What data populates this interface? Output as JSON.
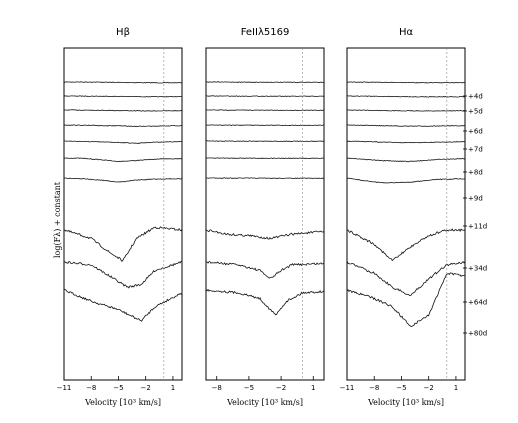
{
  "chart_data": {
    "type": "line",
    "ylabel": "log(Fλ) + constant",
    "epochs": [
      "4d",
      "5d",
      "6d",
      "7d",
      "8d",
      "9d",
      "11d",
      "34d",
      "64d",
      "80d"
    ],
    "panels": [
      {
        "title": "Hβ",
        "xlabel": "Velocity [10³ km/s]",
        "xlim": [
          -11,
          2
        ],
        "xticks": [
          "−11",
          "−8",
          "−5",
          "−2",
          "1"
        ],
        "dashed_x": 0,
        "spectra": [
          {
            "epoch": "4d",
            "x": [
              -11,
              -8,
              -5,
              -2,
              0,
              2
            ],
            "y": [
              0,
              0,
              0.03,
              0.05,
              0.06,
              0.05
            ]
          },
          {
            "epoch": "5d",
            "x": [
              -11,
              -8,
              -5,
              -2,
              0,
              2
            ],
            "y": [
              0,
              0.01,
              0.03,
              0.05,
              0.05,
              0.04
            ]
          },
          {
            "epoch": "6d",
            "x": [
              -11,
              -8,
              -5,
              -2,
              0,
              2
            ],
            "y": [
              0,
              0.01,
              0.04,
              0.07,
              0.06,
              0.05
            ]
          },
          {
            "epoch": "7d",
            "x": [
              -11,
              -8,
              -5,
              -3,
              -1,
              2
            ],
            "y": [
              0,
              0.03,
              0.06,
              0.1,
              0.07,
              0.05
            ]
          },
          {
            "epoch": "8d",
            "x": [
              -11,
              -8,
              -5,
              -3,
              -1,
              2
            ],
            "y": [
              0,
              0.05,
              0.1,
              0.16,
              0.08,
              0.05
            ]
          },
          {
            "epoch": "9d",
            "x": [
              -11,
              -9,
              -7,
              -5,
              -3,
              -1,
              2
            ],
            "y": [
              0,
              0.02,
              0.12,
              0.25,
              0.18,
              0.08,
              0.05
            ]
          },
          {
            "epoch": "11d",
            "x": [
              -11,
              -9,
              -7,
              -5,
              -3,
              -1,
              2
            ],
            "y": [
              0,
              0.05,
              0.15,
              0.3,
              0.15,
              0.08,
              0.05
            ]
          },
          {
            "epoch": "34d",
            "x": [
              -11,
              -8,
              -6,
              -4.5,
              -3,
              -1,
              2
            ],
            "y": [
              0,
              0.3,
              0.8,
              1.1,
              0.3,
              -0.1,
              0
            ]
          },
          {
            "epoch": "64d",
            "x": [
              -11,
              -8,
              -6,
              -4,
              -2.5,
              -1,
              2
            ],
            "y": [
              0,
              0.1,
              0.5,
              0.9,
              0.8,
              0.3,
              0
            ]
          },
          {
            "epoch": "80d",
            "x": [
              -11,
              -8,
              -5,
              -2.5,
              -1,
              2
            ],
            "y": [
              0,
              0.4,
              0.7,
              1.1,
              0.6,
              0.1
            ]
          }
        ]
      },
      {
        "title": "FeIIλ5169",
        "xlabel": "Velocity [10³ km/s]",
        "xlim": [
          -9,
          2
        ],
        "xticks": [
          "−8",
          "−5",
          "−2",
          "1"
        ],
        "dashed_x": 0,
        "spectra": [
          {
            "epoch": "4d",
            "x": [
              -9,
              -5,
              -2,
              2
            ],
            "y": [
              0,
              0.01,
              0.02,
              0.02
            ]
          },
          {
            "epoch": "5d",
            "x": [
              -9,
              -5,
              -2,
              2
            ],
            "y": [
              0,
              0.01,
              0.02,
              0.02
            ]
          },
          {
            "epoch": "6d",
            "x": [
              -9,
              -5,
              -2,
              2
            ],
            "y": [
              0,
              0.01,
              0.02,
              0.02
            ]
          },
          {
            "epoch": "7d",
            "x": [
              -9,
              -5,
              -2,
              2
            ],
            "y": [
              0,
              0.01,
              0.02,
              0.02
            ]
          },
          {
            "epoch": "8d",
            "x": [
              -9,
              -5,
              -2,
              2
            ],
            "y": [
              0,
              0.01,
              0.02,
              0.02
            ]
          },
          {
            "epoch": "9d",
            "x": [
              -9,
              -5,
              -2,
              2
            ],
            "y": [
              0,
              0.01,
              0.02,
              0.02
            ]
          },
          {
            "epoch": "11d",
            "x": [
              -9,
              -5,
              -2,
              2
            ],
            "y": [
              0,
              0.01,
              0.02,
              0.02
            ]
          },
          {
            "epoch": "34d",
            "x": [
              -9,
              -7,
              -5,
              -3,
              -1,
              2
            ],
            "y": [
              0,
              0.15,
              0.2,
              0.3,
              0.15,
              0.05
            ]
          },
          {
            "epoch": "64d",
            "x": [
              -9,
              -6,
              -4,
              -3,
              -2,
              -1,
              2
            ],
            "y": [
              0,
              0.1,
              0.3,
              0.6,
              0.3,
              0.1,
              0.05
            ]
          },
          {
            "epoch": "80d",
            "x": [
              -9,
              -6,
              -4,
              -2.5,
              -1.5,
              0,
              2
            ],
            "y": [
              0,
              0.1,
              0.3,
              0.9,
              0.4,
              0.1,
              0.05
            ]
          }
        ]
      },
      {
        "title": "Hα",
        "xlabel": "Velocity [10³ km/s]",
        "xlim": [
          -11,
          2
        ],
        "xticks": [
          "−11",
          "−8",
          "−5",
          "−2",
          "1"
        ],
        "dashed_x": 0,
        "spectra": [
          {
            "epoch": "4d",
            "x": [
              -11,
              -8,
              -5,
              -2,
              2
            ],
            "y": [
              0,
              0.02,
              0.04,
              0.05,
              0.05
            ]
          },
          {
            "epoch": "5d",
            "x": [
              -11,
              -8,
              -5,
              -2,
              2
            ],
            "y": [
              0,
              0.02,
              0.05,
              0.06,
              0.05
            ]
          },
          {
            "epoch": "6d",
            "x": [
              -11,
              -8,
              -5,
              -2,
              2
            ],
            "y": [
              0,
              0.03,
              0.06,
              0.07,
              0.05
            ]
          },
          {
            "epoch": "7d",
            "x": [
              -11,
              -8,
              -5,
              -2,
              2
            ],
            "y": [
              0,
              0.04,
              0.08,
              0.08,
              0.05
            ]
          },
          {
            "epoch": "8d",
            "x": [
              -11,
              -8,
              -5,
              -2,
              2
            ],
            "y": [
              0,
              0.06,
              0.12,
              0.1,
              0.05
            ]
          },
          {
            "epoch": "9d",
            "x": [
              -11,
              -9,
              -7,
              -4,
              -1,
              2
            ],
            "y": [
              0,
              0.1,
              0.2,
              0.25,
              0.1,
              0.05
            ]
          },
          {
            "epoch": "11d",
            "x": [
              -11,
              -9,
              -7,
              -4,
              -1,
              2
            ],
            "y": [
              0,
              0.2,
              0.35,
              0.3,
              0.1,
              0.05
            ]
          },
          {
            "epoch": "34d",
            "x": [
              -11,
              -8,
              -6,
              -4,
              -2,
              0,
              2
            ],
            "y": [
              0,
              0.5,
              1.1,
              0.6,
              0.2,
              0,
              0
            ]
          },
          {
            "epoch": "64d",
            "x": [
              -11,
              -8,
              -6,
              -4,
              -2,
              0,
              2
            ],
            "y": [
              0,
              0.4,
              0.9,
              1.2,
              0.6,
              0.1,
              0
            ]
          },
          {
            "epoch": "80d",
            "x": [
              -11,
              -8,
              -6,
              -4,
              -2,
              0,
              2
            ],
            "y": [
              0,
              0.3,
              0.6,
              1.3,
              0.9,
              -0.6,
              -0.5
            ]
          }
        ]
      }
    ]
  }
}
